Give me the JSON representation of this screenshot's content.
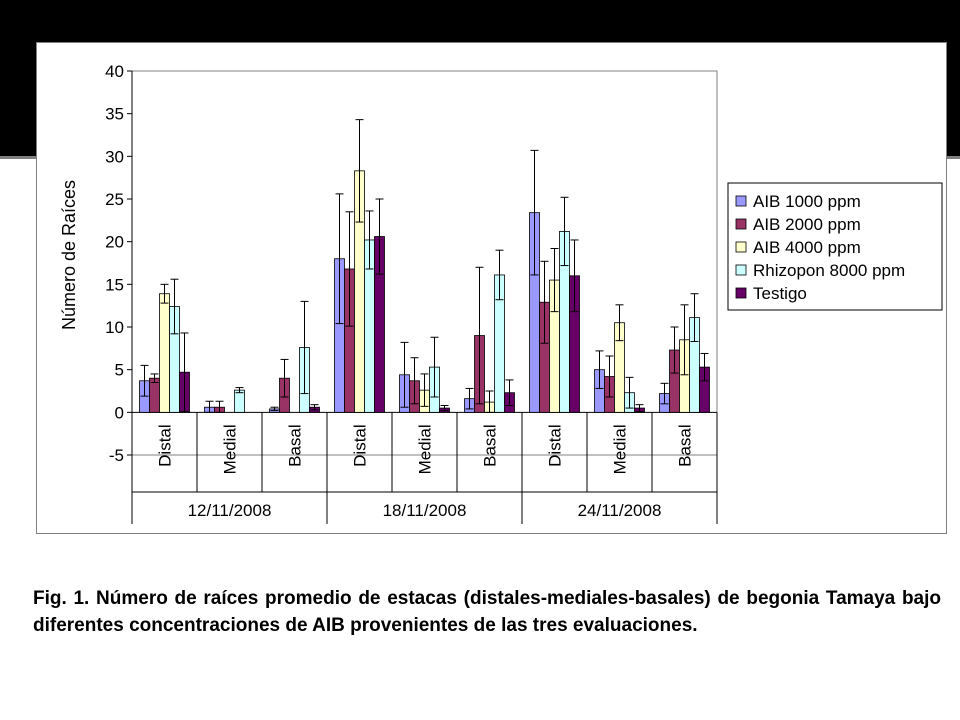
{
  "caption": "Fig. 1. Número de raíces promedio de estacas (distales-mediales-basales) de begonia Tamaya bajo diferentes concentraciones de AIB provenientes de las tres evaluaciones.",
  "chart_data": {
    "type": "bar",
    "ylabel": "Número de Raíces",
    "ylim": [
      -5,
      40
    ],
    "yticks": [
      -5,
      0,
      5,
      10,
      15,
      20,
      25,
      30,
      35,
      40
    ],
    "grid": false,
    "legend_position": "right",
    "groups": [
      "12/11/2008",
      "18/11/2008",
      "24/11/2008"
    ],
    "categories": [
      "Distal",
      "Medial",
      "Basal",
      "Distal",
      "Medial",
      "Basal",
      "Distal",
      "Medial",
      "Basal"
    ],
    "series": [
      {
        "name": "AIB 1000 ppm",
        "color": "#9999ff",
        "values": [
          3.7,
          0.6,
          0.4,
          18.0,
          4.4,
          1.6,
          23.4,
          5.0,
          2.2
        ],
        "errors": [
          1.8,
          0.7,
          0.2,
          7.6,
          3.8,
          1.2,
          7.3,
          2.2,
          1.2
        ]
      },
      {
        "name": "AIB 2000 ppm",
        "color": "#993366",
        "values": [
          4.0,
          0.6,
          4.0,
          16.8,
          3.7,
          9.0,
          12.9,
          4.2,
          7.3
        ],
        "errors": [
          0.5,
          0.7,
          2.2,
          6.7,
          2.7,
          8.0,
          4.8,
          2.4,
          2.7
        ]
      },
      {
        "name": "AIB 4000 ppm",
        "color": "#ffffcc",
        "values": [
          13.9,
          0.0,
          0.0,
          28.3,
          2.6,
          1.2,
          15.5,
          10.5,
          8.5
        ],
        "errors": [
          1.1,
          0.0,
          0.0,
          6.0,
          1.9,
          1.3,
          3.7,
          2.1,
          4.1
        ]
      },
      {
        "name": "Rhizopon 8000 ppm",
        "color": "#ccffff",
        "values": [
          12.4,
          2.6,
          7.6,
          20.2,
          5.3,
          16.1,
          21.2,
          2.3,
          11.1
        ],
        "errors": [
          3.2,
          0.3,
          5.4,
          3.4,
          3.5,
          2.9,
          4.0,
          1.8,
          2.8
        ]
      },
      {
        "name": "Testigo",
        "color": "#660066",
        "values": [
          4.7,
          0.0,
          0.6,
          20.6,
          0.5,
          2.3,
          16.0,
          0.5,
          5.3
        ],
        "errors": [
          4.6,
          0.0,
          0.3,
          4.4,
          0.3,
          1.5,
          4.2,
          0.4,
          1.6
        ]
      }
    ]
  }
}
